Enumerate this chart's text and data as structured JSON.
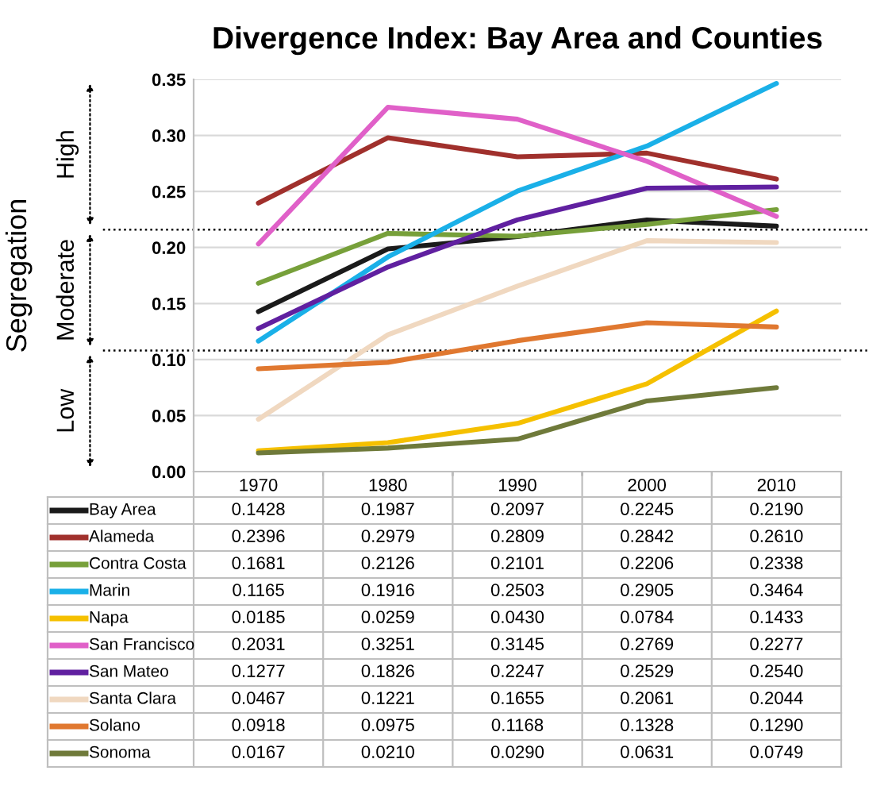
{
  "chart_data": {
    "type": "line",
    "title": "Divergence Index: Bay Area and Counties",
    "categories": [
      "1970",
      "1980",
      "1990",
      "2000",
      "2010"
    ],
    "ylim": [
      0,
      0.35
    ],
    "yticks": [
      {
        "value": 0,
        "label": "0.00"
      },
      {
        "value": 0.05,
        "label": "0.05"
      },
      {
        "value": 0.1,
        "label": "0.10"
      },
      {
        "value": 0.15,
        "label": "0.15"
      },
      {
        "value": 0.2,
        "label": "0.20"
      },
      {
        "value": 0.25,
        "label": "0.25"
      },
      {
        "value": 0.3,
        "label": "0.30"
      },
      {
        "value": 0.35,
        "label": "0.35"
      }
    ],
    "grid": "y",
    "legend": "bottom left",
    "marker": "none",
    "line_style": "solid",
    "annotations": [
      "Segregation",
      "High",
      "Moderate",
      "Low"
    ],
    "ref_lines": [
      {
        "axis": "y",
        "value": 0.216,
        "label": null,
        "line_style": "dotted",
        "color": "#000000"
      },
      {
        "axis": "y",
        "value": 0.108,
        "label": null,
        "line_style": "dotted",
        "color": "#000000"
      }
    ],
    "series": [
      {
        "name": "Bay Area",
        "color": "#1a1a1a",
        "values": [
          0.1428,
          0.1987,
          0.2097,
          0.2245,
          0.219
        ],
        "value_labels": [
          "0.1428",
          "0.1987",
          "0.2097",
          "0.2245",
          "0.2190"
        ]
      },
      {
        "name": "Alameda",
        "color": "#a0302c",
        "values": [
          0.2396,
          0.2979,
          0.2809,
          0.2842,
          0.261
        ],
        "value_labels": [
          "0.2396",
          "0.2979",
          "0.2809",
          "0.2842",
          "0.2610"
        ]
      },
      {
        "name": "Contra Costa",
        "color": "#77a03a",
        "values": [
          0.1681,
          0.2126,
          0.2101,
          0.2206,
          0.2338
        ],
        "value_labels": [
          "0.1681",
          "0.2126",
          "0.2101",
          "0.2206",
          "0.2338"
        ]
      },
      {
        "name": "Marin",
        "color": "#1ab0e8",
        "values": [
          0.1165,
          0.1916,
          0.2503,
          0.2905,
          0.3464
        ],
        "value_labels": [
          "0.1165",
          "0.1916",
          "0.2503",
          "0.2905",
          "0.3464"
        ]
      },
      {
        "name": "Napa",
        "color": "#f5c000",
        "values": [
          0.0185,
          0.0259,
          0.043,
          0.0784,
          0.1433
        ],
        "value_labels": [
          "0.0185",
          "0.0259",
          "0.0430",
          "0.0784",
          "0.1433"
        ]
      },
      {
        "name": "San Francisco",
        "color": "#e060c8",
        "values": [
          0.2031,
          0.3251,
          0.3145,
          0.2769,
          0.2277
        ],
        "value_labels": [
          "0.2031",
          "0.3251",
          "0.3145",
          "0.2769",
          "0.2277"
        ]
      },
      {
        "name": "San Mateo",
        "color": "#6020a0",
        "values": [
          0.1277,
          0.1826,
          0.2247,
          0.2529,
          0.254
        ],
        "value_labels": [
          "0.1277",
          "0.1826",
          "0.2247",
          "0.2529",
          "0.2540"
        ]
      },
      {
        "name": "Santa Clara",
        "color": "#f0d8c0",
        "values": [
          0.0467,
          0.1221,
          0.1655,
          0.2061,
          0.2044
        ],
        "value_labels": [
          "0.0467",
          "0.1221",
          "0.1655",
          "0.2061",
          "0.2044"
        ]
      },
      {
        "name": "Solano",
        "color": "#e07830",
        "values": [
          0.0918,
          0.0975,
          0.1168,
          0.1328,
          0.129
        ],
        "value_labels": [
          "0.0918",
          "0.0975",
          "0.1168",
          "0.1328",
          "0.1290"
        ]
      },
      {
        "name": "Sonoma",
        "color": "#6f7a3a",
        "values": [
          0.0167,
          0.021,
          0.029,
          0.0631,
          0.0749
        ],
        "value_labels": [
          "0.0167",
          "0.0210",
          "0.0290",
          "0.0631",
          "0.0749"
        ]
      }
    ]
  }
}
